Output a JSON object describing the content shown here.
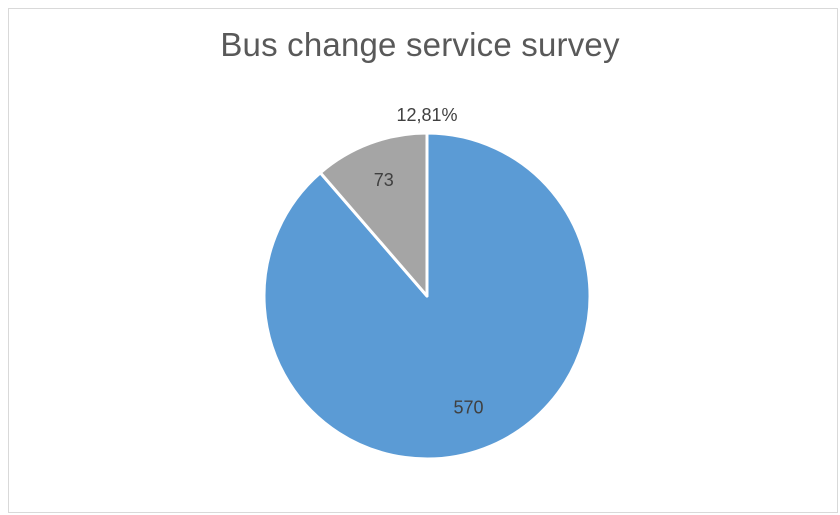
{
  "chart_data": {
    "type": "pie",
    "title": "Bus change service survey",
    "slices": [
      {
        "value": 570,
        "label": "570",
        "color": "#5b9bd5"
      },
      {
        "value": 73,
        "label": "73",
        "color": "#a5a5a5"
      }
    ],
    "annotations": [
      "12,81%"
    ],
    "legend": "none"
  }
}
